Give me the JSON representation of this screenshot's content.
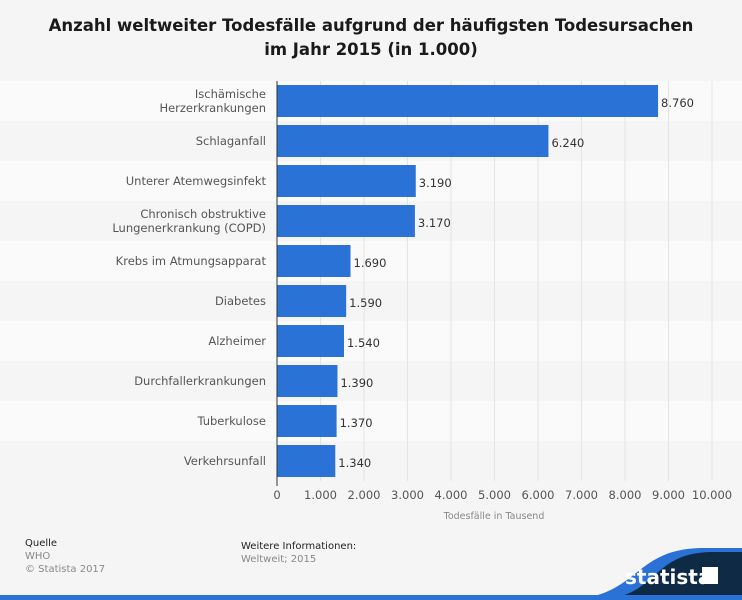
{
  "chart_data": {
    "type": "bar",
    "orientation": "horizontal",
    "title_lines": [
      "Anzahl weltweiter Todesfälle aufgrund der häufigsten Todesursachen",
      "im Jahr 2015 (in 1.000)"
    ],
    "categories": [
      [
        "Ischämische",
        "Herzerkrankungen"
      ],
      [
        "Schlaganfall"
      ],
      [
        "Unterer Atemwegsinfekt"
      ],
      [
        "Chronisch obstruktive",
        "Lungenerkrankung (COPD)"
      ],
      [
        "Krebs im Atmungsapparat"
      ],
      [
        "Diabetes"
      ],
      [
        "Alzheimer"
      ],
      [
        "Durchfallerkrankungen"
      ],
      [
        "Tuberkulose"
      ],
      [
        "Verkehrsunfall"
      ]
    ],
    "values": [
      8760,
      6240,
      3190,
      3170,
      1690,
      1590,
      1540,
      1390,
      1370,
      1340
    ],
    "data_labels": [
      "8.760",
      "6.240",
      "3.190",
      "3.170",
      "1.690",
      "1.590",
      "1.540",
      "1.390",
      "1.370",
      "1.340"
    ],
    "xlim": [
      0,
      10000
    ],
    "xticks": [
      0,
      1000,
      2000,
      3000,
      4000,
      5000,
      6000,
      7000,
      8000,
      9000,
      10000
    ],
    "xtick_labels": [
      "0",
      "1.000",
      "2.000",
      "3.000",
      "4.000",
      "5.000",
      "6.000",
      "7.000",
      "8.000",
      "9.000",
      "10.000"
    ],
    "xlabel": "Todesfälle in Tausend",
    "grid": true,
    "bar_color": "#2a72d6"
  },
  "footer": {
    "source_label": "Quelle",
    "source": "WHO",
    "copyright": "© Statista 2017",
    "info_label": "Weitere Informationen:",
    "info": "Weltweit; 2015",
    "brand": "statista"
  },
  "colors": {
    "brand_dark": "#0e2a44",
    "brand_blue": "#2a72d6"
  }
}
